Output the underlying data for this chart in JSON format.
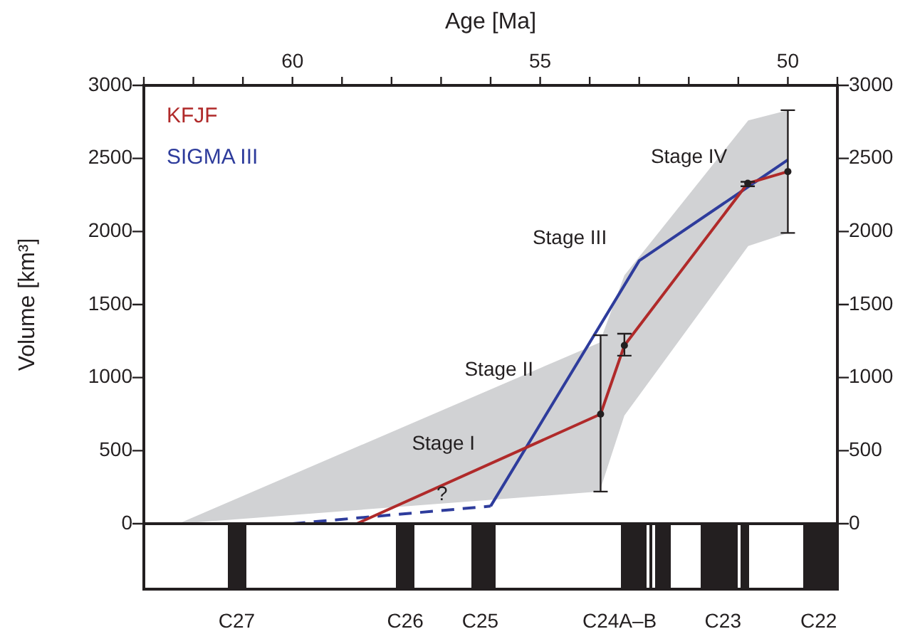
{
  "chart_data": {
    "type": "line",
    "xlabel": "Age [Ma]",
    "ylabel": "Volume [km³]",
    "xlim": [
      63,
      49
    ],
    "xticks": [
      {
        "value": 63,
        "label": null
      },
      {
        "value": 62,
        "label": null
      },
      {
        "value": 61,
        "label": null
      },
      60,
      {
        "value": 59,
        "label": null
      },
      {
        "value": 58,
        "label": null
      },
      {
        "value": 57,
        "label": null
      },
      {
        "value": 56,
        "label": null
      },
      55,
      {
        "value": 54,
        "label": null
      },
      {
        "value": 53,
        "label": null
      },
      {
        "value": 52,
        "label": null
      },
      {
        "value": 51,
        "label": null
      },
      50,
      {
        "value": 49,
        "label": null
      }
    ],
    "ylim": [
      0,
      3000
    ],
    "yticks": [
      0,
      500,
      1000,
      1500,
      2000,
      2500,
      3000
    ],
    "y2lim": [
      0,
      3000
    ],
    "y2ticks": [
      0,
      500,
      1000,
      1500,
      2000,
      2500,
      3000
    ],
    "legend": "top left",
    "grid": false,
    "series": [
      {
        "type": "area",
        "color": "#d1d2d4",
        "x": [
          62.3,
          53.8,
          53.3,
          50.8,
          50.0
        ],
        "values": [
          null,
          null,
          null,
          null,
          null
        ],
        "lower": [
          0,
          220,
          740,
          1900,
          1990
        ],
        "upper": [
          0,
          1240,
          1700,
          2760,
          2830
        ]
      },
      {
        "name": "KFJF",
        "color": "#b02a2a",
        "marker": "circle",
        "x": [
          58.7,
          53.78,
          53.3,
          50.81,
          50.0
        ],
        "values": [
          0,
          750,
          1220,
          2330,
          2410
        ],
        "errors": [
          null,
          [
            220,
            1290
          ],
          [
            1150,
            1300
          ],
          [
            2310,
            2340
          ],
          [
            1990,
            2830
          ]
        ]
      },
      {
        "color": "#2e3c9c",
        "line_style": "dashed",
        "x": [
          60.0,
          56.0
        ],
        "values": [
          0,
          120
        ]
      },
      {
        "name": "SIGMA III",
        "color": "#2e3c9c",
        "line_style": "solid",
        "x": [
          56.0,
          53.0,
          50.0
        ],
        "values": [
          120,
          1800,
          2490
        ]
      }
    ],
    "annotations": [
      "Stage I",
      "Stage II",
      "Stage III",
      "Stage IV",
      "?",
      "C27",
      "C26",
      "C25",
      "C24A–B",
      "C23",
      "C22"
    ]
  }
}
